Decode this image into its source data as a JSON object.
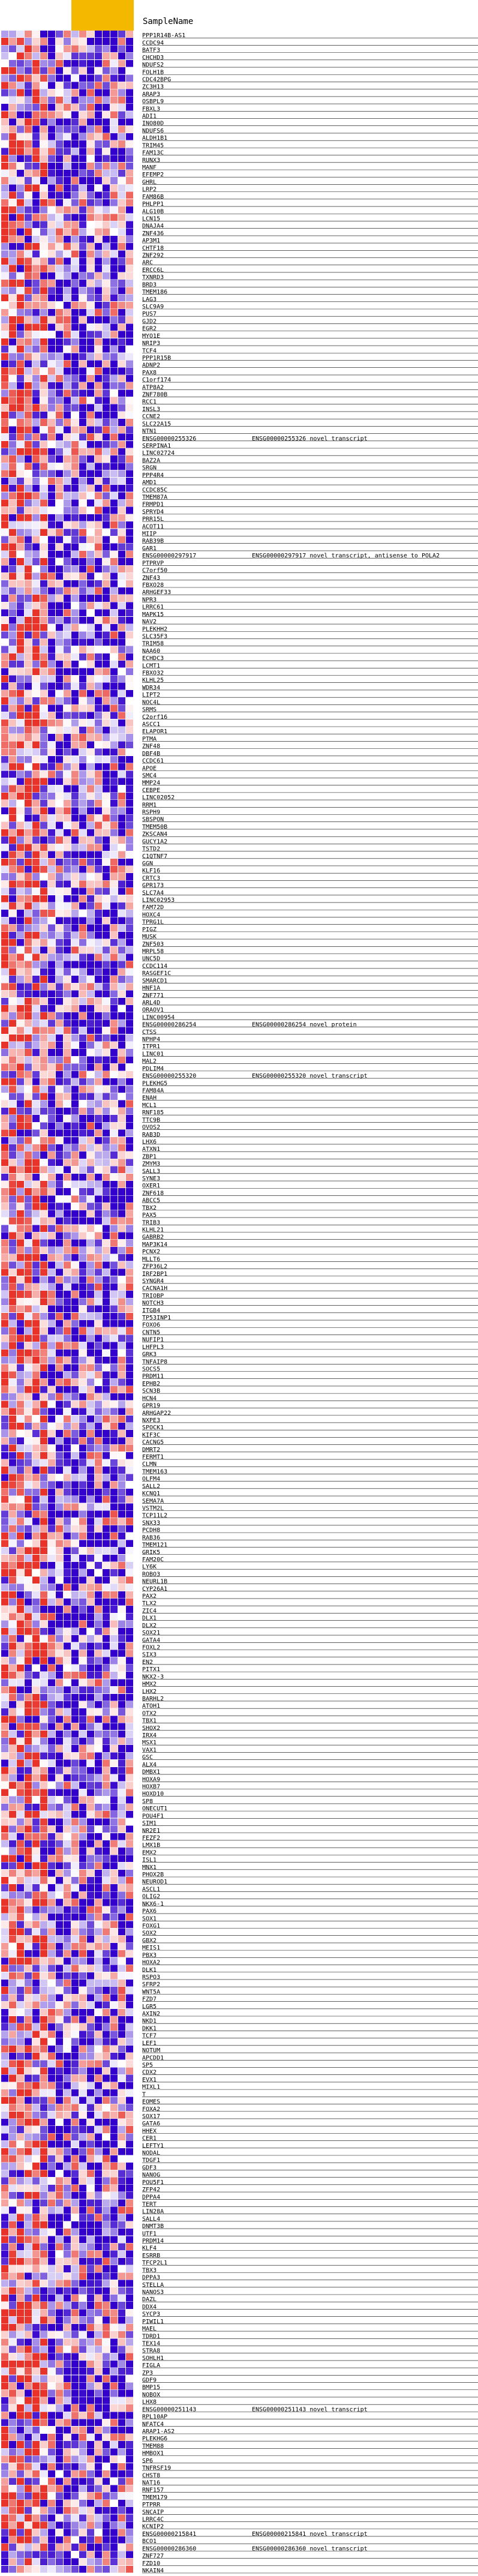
{
  "chart_data": {
    "type": "heatmap",
    "title": "",
    "xlabel": "",
    "ylabel": "",
    "color_scale": {
      "low": "#3300cc",
      "mid": "#ffffff",
      "high": "#e8332a"
    },
    "grid": true,
    "highlight_color": "#f5b800",
    "highlighted_columns": [
      9,
      10,
      11,
      12,
      13,
      14,
      15,
      16
    ],
    "header_label": "SampleName",
    "columns": [
      "",
      "",
      "",
      "",
      "",
      "",
      "",
      "",
      "",
      "",
      "",
      "",
      "",
      "",
      "",
      "",
      ""
    ],
    "rows": [
      "PPP1R14B-AS1",
      "CCDC94",
      "BATF3",
      "CHCHD3",
      "NDUFS2",
      "FOLH1B",
      "CDC42BPG",
      "ZC3H13",
      "ARAP3",
      "OSBPL9",
      "FBXL3",
      "ADI1",
      "INO80D",
      "NDUFS6",
      "ALDH1B1",
      "TRIM45",
      "FAM13C",
      "RUNX3",
      "MANF",
      "EFEMP2",
      "GHRL",
      "LRP2",
      "FAM86B",
      "PHLPP1",
      "ALG10B",
      "LCN15",
      "DNAJA4",
      "ZNF436",
      "AP3M1",
      "CHTF18",
      "ZNF292",
      "ARC",
      "ERCC6L",
      "TXNRD3",
      "BRD3",
      "TMEM186",
      "LAG3",
      "SLC9A9",
      "PUS7",
      "GJD2",
      "EGR2",
      "MYO1E",
      "NRIP3",
      "TCF4",
      "PPP1R15B",
      "ADNP2",
      "PAX8",
      "C1orf174",
      "ATP8A2",
      "ZNF780B",
      "RCC1",
      "INSL3",
      "CCNE2",
      "SLC22A15",
      "NTN1",
      "ENSG00000255326",
      "SERPINA1",
      "LINC02724",
      "BAZ2A",
      "SRGN",
      "PPP4R4",
      "AMD1",
      "CCDC85C",
      "TMEM87A",
      "FRMPD1",
      "SPRYD4",
      "PRR15L",
      "ACOT11",
      "MIIP",
      "RAB39B",
      "GAR1",
      "ENSG00000297917",
      "PTPRVP",
      "C7orf50",
      "ZNF43",
      "FBXO28",
      "ARHGEF33",
      "NPR3",
      "LRRC61",
      "MAPK15",
      "NAV2",
      "PLEKHH2",
      "SLC35F3",
      "TRIM58",
      "NAA60",
      "ECHDC3",
      "LCMT1",
      "FBXO32",
      "KLHL25",
      "WDR34",
      "LIPT2",
      "NOC4L",
      "SRMS",
      "C2orf16",
      "ASCC1",
      "ELAPOR1",
      "PTMA",
      "ZNF48",
      "DBF4B",
      "CCDC61",
      "APOE",
      "SMC4",
      "MMP24",
      "CEBPE",
      "LINC02052",
      "RRM1",
      "RSPH9",
      "SBSPON",
      "TMEM50B",
      "ZKSCAN4",
      "GUCY1A2",
      "TSTD2",
      "C1QTNF7",
      "GGN",
      "KLF16",
      "CRTC3",
      "GPR173",
      "SLC7A4",
      "LINC02953",
      "FAM72D",
      "HOXC4",
      "TPRG1L",
      "PIGZ",
      "MUSK",
      "ZNF503",
      "MRPL58",
      "UNC5D",
      "CCDC114",
      "RASGEF1C",
      "SMARCD1",
      "HNF1A",
      "ZNF771",
      "ARL4D",
      "ORAOV1",
      "LINC00954",
      "ENSG00000286254",
      "CTSS",
      "NPHP4",
      "ITPR1",
      "LINC01",
      "MAL2",
      "PDLIM4",
      "ENSG00000255320",
      "PLEKHG5",
      "FAM84A",
      "ENAH",
      "MCL1",
      "RNF185",
      "TTC9B",
      "OVOS2",
      "RAB3D",
      "LHX6",
      "ATXN1",
      "ZBP1",
      "ZMYM3",
      "SALL3",
      "SYNE3",
      "OXER1",
      "ZNF618",
      "ABCC5",
      "TBX2",
      "PAX5",
      "TRIB3",
      "KLHL21",
      "GABRB2",
      "MAP3K14",
      "PCNX2",
      "MLLT6",
      "ZFP36L2",
      "IRF2BP1",
      "SYNGR4",
      "CACNA1H",
      "TRIOBP",
      "NOTCH3",
      "ITGB4",
      "TP53INP1",
      "FOXO6",
      "CNTN5",
      "NUFIP1",
      "LHFPL3",
      "GRK3",
      "TNFAIP8",
      "SOCS5",
      "PRDM11",
      "EPHB2",
      "SCN3B",
      "HCN4",
      "GPR19",
      "ARHGAP22",
      "NXPE3",
      "SPOCK1",
      "KIF3C",
      "CACNG5",
      "DMRT2",
      "FERMT1",
      "CLMN",
      "TMEM163",
      "OLFM4",
      "SALL2",
      "KCNQ1",
      "SEMA7A",
      "VSTM2L",
      "TCP11L2",
      "SNX33",
      "PCDH8",
      "RAB36",
      "TMEM121",
      "GRIK5",
      "FAM20C",
      "LY6K",
      "ROBO3",
      "NEURL1B",
      "CYP26A1",
      "PAX2",
      "TLX2",
      "ZIC4",
      "DLX1",
      "DLX2",
      "SOX21",
      "GATA4",
      "FOXL2",
      "SIX3",
      "EN2",
      "PITX1",
      "NKX2-3",
      "HMX2",
      "LHX2",
      "BARHL2",
      "ATOH1",
      "OTX2",
      "TBX1",
      "SHOX2",
      "IRX4",
      "MSX1",
      "VAX1",
      "GSC",
      "ALX4",
      "DMBX1",
      "HOXA9",
      "HOXB7",
      "HOXD10",
      "SP8",
      "ONECUT1",
      "POU4F1",
      "SIM1",
      "NR2E1",
      "FEZF2",
      "LMX1B",
      "EMX2",
      "ISL1",
      "MNX1",
      "PHOX2B",
      "NEUROD1",
      "ASCL1",
      "OLIG2",
      "NKX6-1",
      "PAX6",
      "SOX1",
      "FOXG1",
      "SOX2",
      "GBX2",
      "MEIS1",
      "PBX3",
      "HOXA2",
      "DLK1",
      "RSPO3",
      "SFRP2",
      "WNT5A",
      "FZD7",
      "LGR5",
      "AXIN2",
      "NKD1",
      "DKK1",
      "TCF7",
      "LEF1",
      "NOTUM",
      "APCDD1",
      "SP5",
      "CDX2",
      "EVX1",
      "MIXL1",
      "T",
      "EOMES",
      "FOXA2",
      "SOX17",
      "GATA6",
      "HHEX",
      "CER1",
      "LEFTY1",
      "NODAL",
      "TDGF1",
      "GDF3",
      "NANOG",
      "POU5F1",
      "ZFP42",
      "DPPA4",
      "TERT",
      "LIN28A",
      "SALL4",
      "DNMT3B",
      "UTF1",
      "PRDM14",
      "KLF4",
      "ESRRB",
      "TFCP2L1",
      "TBX3",
      "DPPA3",
      "STELLA",
      "NANOS3",
      "DAZL",
      "DDX4",
      "SYCP3",
      "PIWIL1",
      "MAEL",
      "TDRD1",
      "TEX14",
      "STRA8",
      "SOHLH1",
      "FIGLA",
      "ZP3",
      "GDF9",
      "BMP15",
      "NOBOX",
      "LHX8",
      "ENSG00000251143",
      "RPL10AP",
      "NFATC4",
      "ARAP1-AS2",
      "PLEKHG6",
      "TMEM88",
      "HMBOX1",
      "SP6",
      "TNFRSF19",
      "CHST8",
      "NAT16",
      "RNF157",
      "TMEM179",
      "PTPRR",
      "SNCAIP",
      "LRRC4C",
      "KCNIP2",
      "ENSG00000215841",
      "BCO1",
      "ENSG00000286360",
      "ZNF727",
      "FZD10",
      "NKAIN4"
    ],
    "row_descriptions": {
      "ENSG00000255326": "ENSG00000255326 novel transcript",
      "ENSG00000297917": "ENSG00000297917 novel transcript, antisense to POLA2",
      "ENSG00000286254": "ENSG00000286254 novel protein",
      "ENSG00000255320": "ENSG00000255320 novel transcript",
      "ENSG00000251143": "ENSG00000251143 novel transcript",
      "ENSG00000215841": "ENSG00000215841 novel transcript",
      "ENSG00000286360": "ENSG00000286360 novel transcript"
    },
    "seed": 7341
  }
}
